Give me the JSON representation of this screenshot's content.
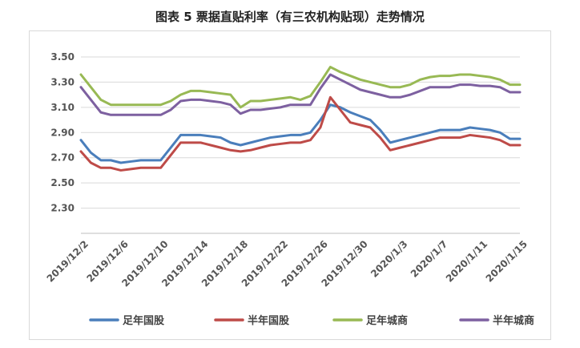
{
  "title": "图表 5  票据直贴利率（有三农机构贴现）走势情况",
  "chart_data": {
    "type": "line",
    "title": "图表 5  票据直贴利率（有三农机构贴现）走势情况",
    "xlabel": "",
    "ylabel": "",
    "ylim": [
      2.1,
      3.5
    ],
    "yticks": [
      "2.30",
      "2.50",
      "2.70",
      "2.90",
      "3.10",
      "3.30",
      "3.50"
    ],
    "yticks_values": [
      2.3,
      2.5,
      2.7,
      2.9,
      3.1,
      3.3,
      3.5
    ],
    "grid": true,
    "legend_position": "bottom",
    "x": [
      "2019/12/2",
      "2019/12/3",
      "2019/12/4",
      "2019/12/5",
      "2019/12/6",
      "2019/12/7",
      "2019/12/8",
      "2019/12/9",
      "2019/12/10",
      "2019/12/11",
      "2019/12/12",
      "2019/12/13",
      "2019/12/14",
      "2019/12/15",
      "2019/12/16",
      "2019/12/17",
      "2019/12/18",
      "2019/12/19",
      "2019/12/20",
      "2019/12/21",
      "2019/12/22",
      "2019/12/23",
      "2019/12/24",
      "2019/12/25",
      "2019/12/26",
      "2019/12/27",
      "2019/12/28",
      "2019/12/29",
      "2019/12/30",
      "2019/12/31",
      "2020/1/1",
      "2020/1/2",
      "2020/1/3",
      "2020/1/4",
      "2020/1/5",
      "2020/1/6",
      "2020/1/7",
      "2020/1/8",
      "2020/1/9",
      "2020/1/10",
      "2020/1/11",
      "2020/1/12",
      "2020/1/13",
      "2020/1/14",
      "2020/1/15"
    ],
    "xtick_labels": [
      "2019/12/2",
      "2019/12/6",
      "2019/12/10",
      "2019/12/14",
      "2019/12/18",
      "2019/12/22",
      "2019/12/26",
      "2019/12/30",
      "2020/1/3",
      "2020/1/7",
      "2020/1/11",
      "2020/1/15"
    ],
    "series": [
      {
        "name": "足年国股",
        "color": "#4a7ebb",
        "values": [
          2.84,
          2.74,
          2.68,
          2.68,
          2.66,
          2.67,
          2.68,
          2.68,
          2.68,
          2.78,
          2.88,
          2.88,
          2.88,
          2.87,
          2.86,
          2.82,
          2.8,
          2.82,
          2.84,
          2.86,
          2.87,
          2.88,
          2.88,
          2.9,
          3.0,
          3.12,
          3.1,
          3.06,
          3.03,
          3.0,
          2.92,
          2.82,
          2.84,
          2.86,
          2.88,
          2.9,
          2.92,
          2.92,
          2.92,
          2.94,
          2.93,
          2.92,
          2.9,
          2.85,
          2.85
        ]
      },
      {
        "name": "半年国股",
        "color": "#be4b48",
        "values": [
          2.75,
          2.66,
          2.62,
          2.62,
          2.6,
          2.61,
          2.62,
          2.62,
          2.62,
          2.72,
          2.82,
          2.82,
          2.82,
          2.8,
          2.78,
          2.76,
          2.75,
          2.76,
          2.78,
          2.8,
          2.81,
          2.82,
          2.82,
          2.84,
          2.94,
          3.18,
          3.08,
          2.98,
          2.96,
          2.94,
          2.86,
          2.76,
          2.78,
          2.8,
          2.82,
          2.84,
          2.86,
          2.86,
          2.86,
          2.88,
          2.87,
          2.86,
          2.84,
          2.8,
          2.8
        ]
      },
      {
        "name": "足年城商",
        "color": "#98b954",
        "values": [
          3.36,
          3.26,
          3.16,
          3.12,
          3.12,
          3.12,
          3.12,
          3.12,
          3.12,
          3.15,
          3.2,
          3.23,
          3.23,
          3.22,
          3.21,
          3.2,
          3.1,
          3.15,
          3.15,
          3.16,
          3.17,
          3.18,
          3.16,
          3.19,
          3.3,
          3.42,
          3.38,
          3.35,
          3.32,
          3.3,
          3.28,
          3.26,
          3.26,
          3.28,
          3.32,
          3.34,
          3.35,
          3.35,
          3.36,
          3.36,
          3.35,
          3.34,
          3.32,
          3.28,
          3.28
        ]
      },
      {
        "name": "半年城商",
        "color": "#7d60a0",
        "values": [
          3.26,
          3.16,
          3.06,
          3.04,
          3.04,
          3.04,
          3.04,
          3.04,
          3.04,
          3.08,
          3.15,
          3.16,
          3.16,
          3.15,
          3.14,
          3.12,
          3.05,
          3.08,
          3.08,
          3.09,
          3.1,
          3.12,
          3.12,
          3.12,
          3.25,
          3.36,
          3.32,
          3.28,
          3.24,
          3.22,
          3.2,
          3.18,
          3.18,
          3.2,
          3.23,
          3.26,
          3.26,
          3.26,
          3.28,
          3.28,
          3.27,
          3.27,
          3.26,
          3.22,
          3.22
        ]
      }
    ]
  }
}
